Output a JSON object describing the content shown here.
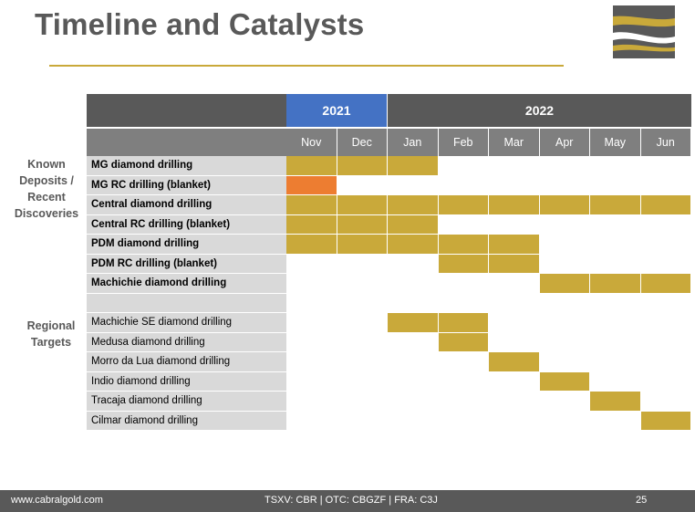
{
  "title": "Timeline and Catalysts",
  "groups": {
    "known": "Known Deposits / Recent Discoveries",
    "regional": "Regional Targets"
  },
  "years": [
    {
      "label": "2021",
      "color": "#4472c4"
    },
    {
      "label": "2022",
      "color": "#595959"
    }
  ],
  "months": [
    "Nov",
    "Dec",
    "Jan",
    "Feb",
    "Mar",
    "Apr",
    "May",
    "Jun"
  ],
  "rows": [
    {
      "label": "MG diamond drilling",
      "bold": true,
      "bars": [
        {
          "start": 0,
          "end": 3
        }
      ]
    },
    {
      "label": "MG RC drilling (blanket)",
      "bold": true,
      "bars": [
        {
          "start": 0,
          "end": 1,
          "color": "orange"
        }
      ]
    },
    {
      "label": "Central diamond drilling",
      "bold": true,
      "bars": [
        {
          "start": 0,
          "end": 8
        }
      ]
    },
    {
      "label": "Central RC drilling (blanket)",
      "bold": true,
      "bars": [
        {
          "start": 0,
          "end": 3
        }
      ]
    },
    {
      "label": "PDM diamond drilling",
      "bold": true,
      "bars": [
        {
          "start": 0,
          "end": 5
        }
      ]
    },
    {
      "label": "PDM RC drilling (blanket)",
      "bold": true,
      "bars": [
        {
          "start": 3,
          "end": 5
        }
      ]
    },
    {
      "label": "Machichie diamond drilling",
      "bold": true,
      "bars": [
        {
          "start": 5,
          "end": 8
        }
      ]
    },
    {
      "label": "",
      "bold": false,
      "bars": []
    },
    {
      "label": "Machichie SE diamond drilling",
      "bold": false,
      "bars": [
        {
          "start": 2,
          "end": 4
        }
      ]
    },
    {
      "label": "Medusa  diamond drilling",
      "bold": false,
      "bars": [
        {
          "start": 3,
          "end": 4
        }
      ]
    },
    {
      "label": "Morro da Lua diamond drilling",
      "bold": false,
      "bars": [
        {
          "start": 4,
          "end": 5
        }
      ]
    },
    {
      "label": "Indio diamond drilling",
      "bold": false,
      "bars": [
        {
          "start": 5,
          "end": 6
        }
      ]
    },
    {
      "label": "Tracaja diamond drilling",
      "bold": false,
      "bars": [
        {
          "start": 6,
          "end": 7
        }
      ]
    },
    {
      "label": "Cilmar diamond drilling",
      "bold": false,
      "bars": [
        {
          "start": 7,
          "end": 8
        }
      ]
    }
  ],
  "colors": {
    "gold": "#c9a93a",
    "orange": "#ed7d31",
    "header_gray": "#595959",
    "month_gray": "#7f7f7f",
    "label_gray": "#d9d9d9"
  },
  "footer": {
    "site": "www.cabralgold.com",
    "tickers": "TSXV: CBR  |  OTC: CBGZF  |  FRA: C3J",
    "page": "25"
  }
}
